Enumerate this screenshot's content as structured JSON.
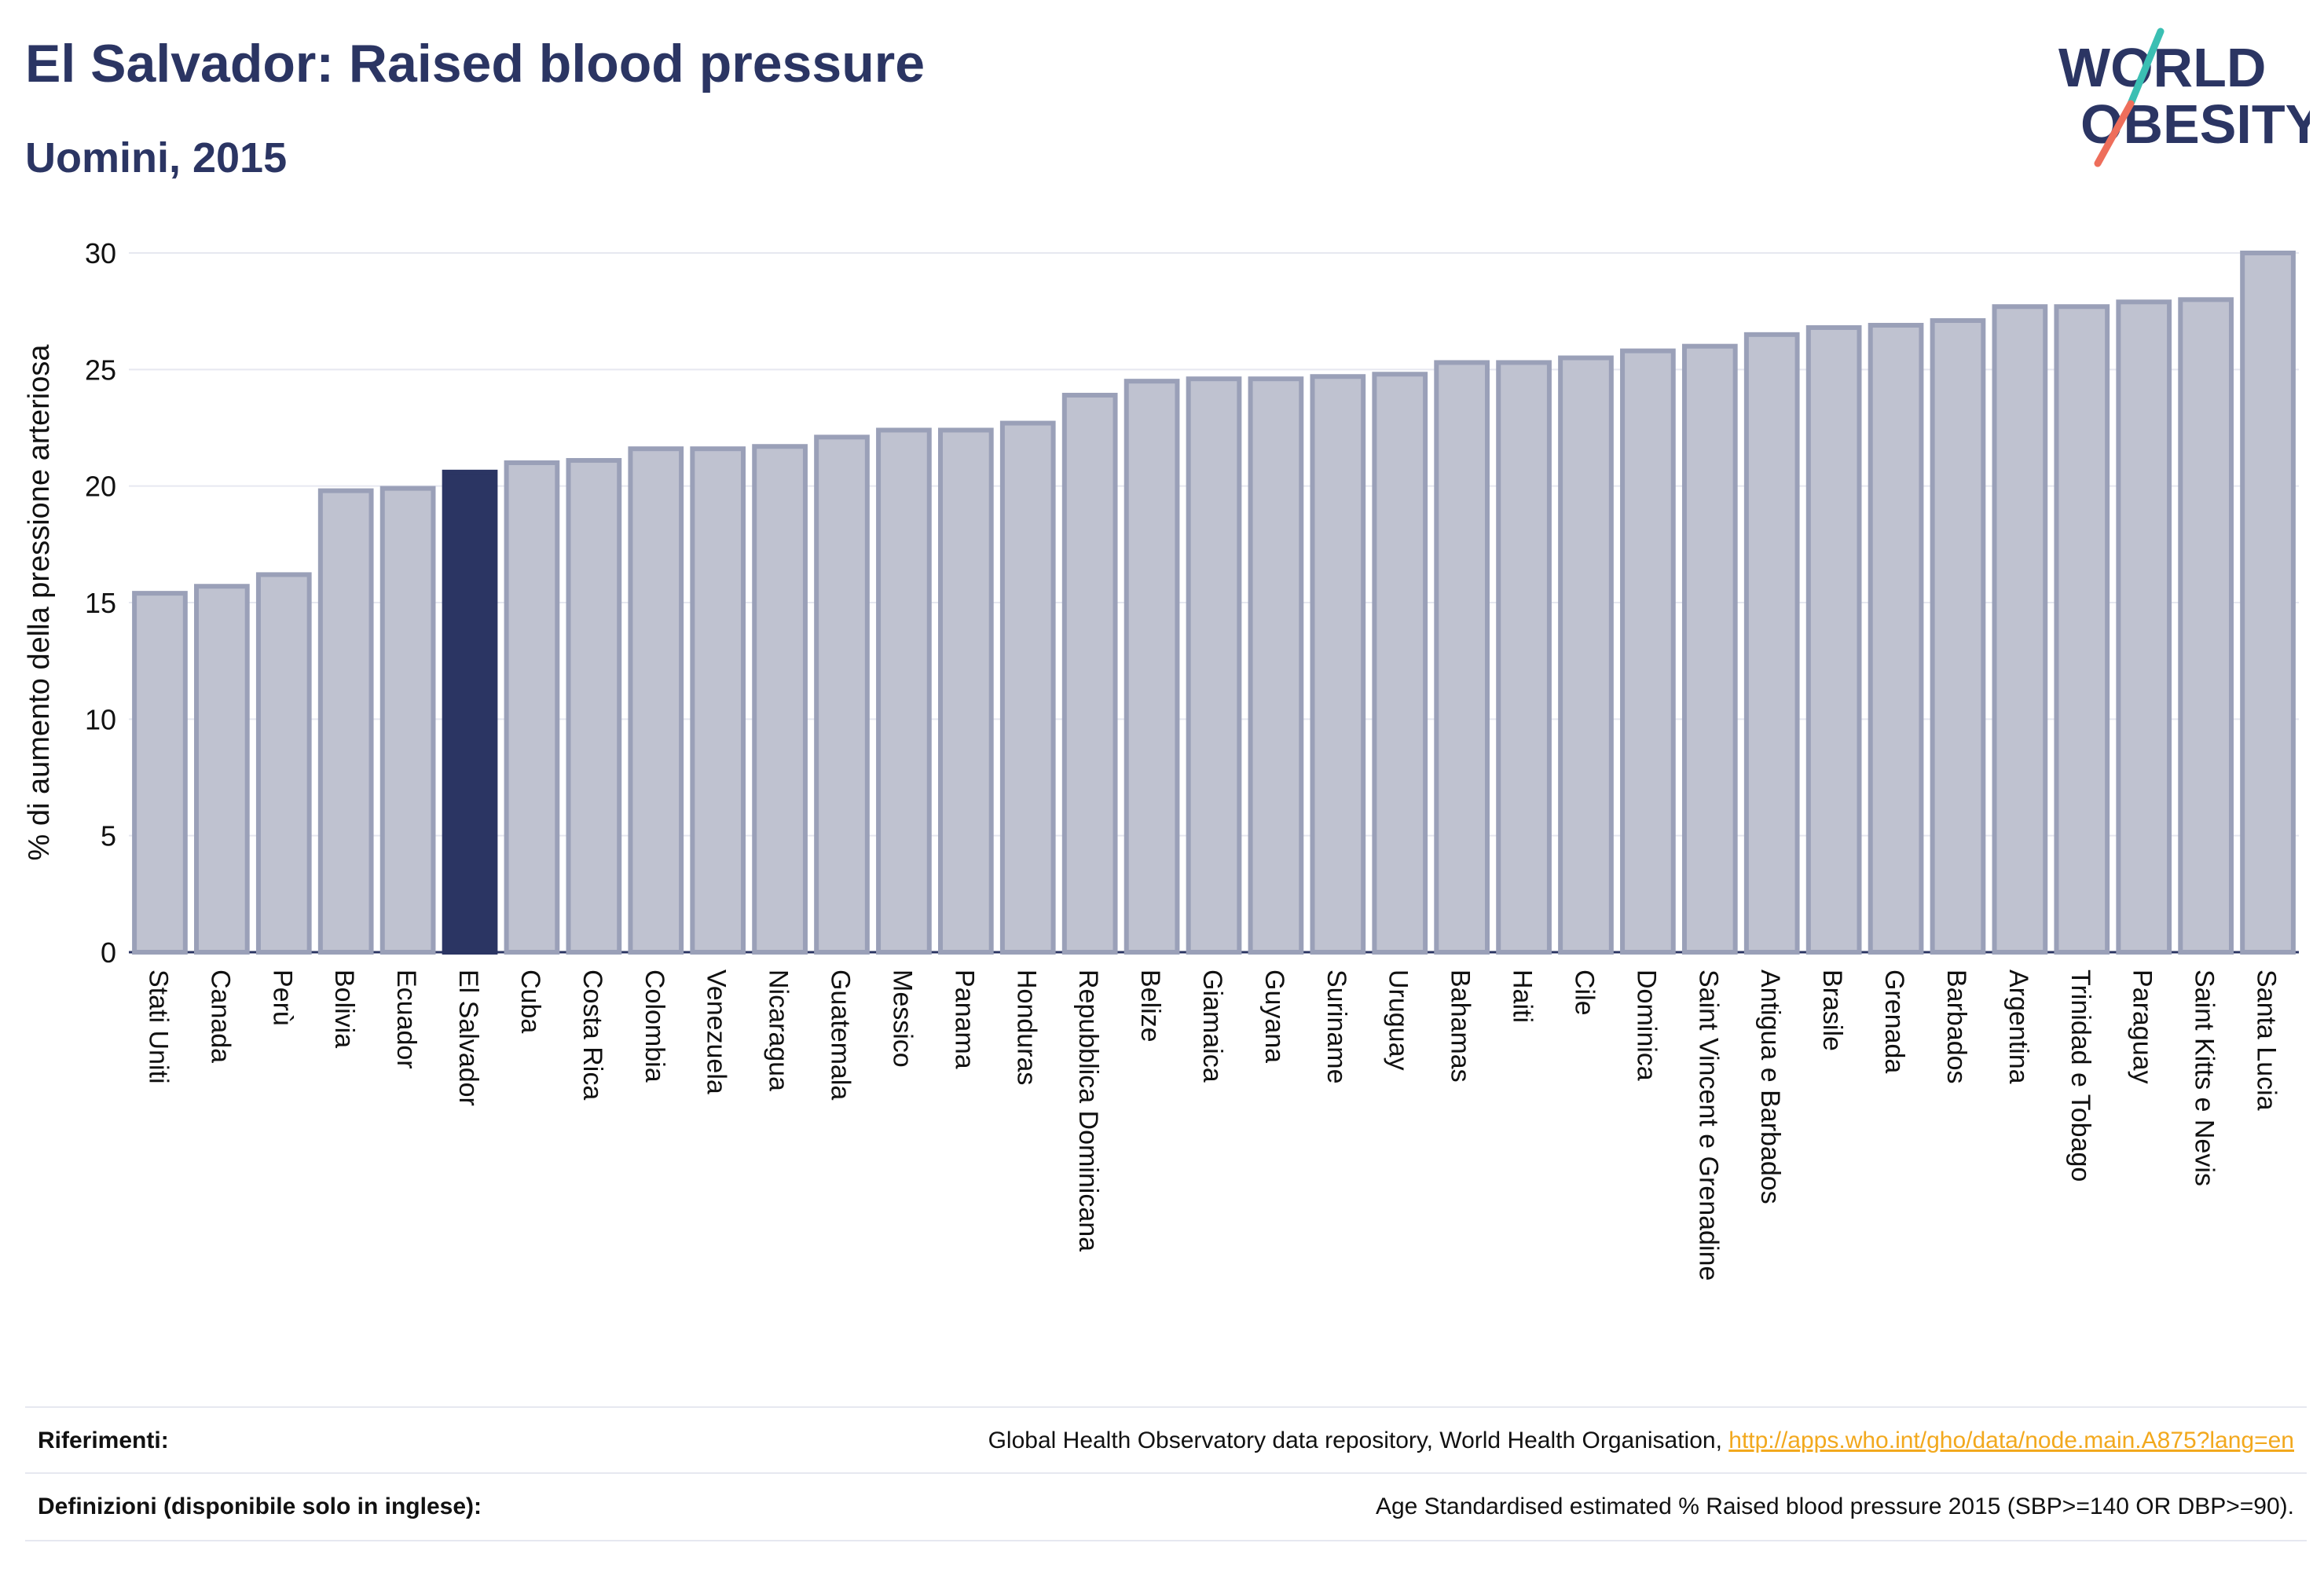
{
  "header": {
    "title": "El Salvador: Raised blood pressure",
    "subtitle": "Uomini, 2015"
  },
  "logo": {
    "line1": "WORLD",
    "line2": "OBESITY",
    "slash_color_top": "#3bbfb3",
    "slash_color_bottom": "#ee6e5b"
  },
  "footer": {
    "references_label": "Riferimenti:",
    "references_text": "Global Health Observatory data repository, World Health Organisation, ",
    "references_link": "http://apps.who.int/gho/data/node.main.A875?lang=en",
    "definitions_label": "Definizioni (disponibile solo in inglese):",
    "definitions_text": "Age Standardised estimated % Raised blood pressure 2015 (SBP>=140 OR DBP>=90)."
  },
  "colors": {
    "bar_fill": "#bfc2d0",
    "bar_stroke": "#9aa0b8",
    "highlight_fill": "#2b3563",
    "text": "#2b3563"
  },
  "chart_data": {
    "type": "bar",
    "title": "El Salvador: Raised blood pressure",
    "subtitle": "Uomini, 2015",
    "xlabel": "",
    "ylabel": "% di aumento della pressione arteriosa",
    "ylim": [
      0,
      30
    ],
    "yticks": [
      0,
      5,
      10,
      15,
      20,
      25,
      30
    ],
    "grid": true,
    "highlight": "El Salvador",
    "categories": [
      "Stati Uniti",
      "Canada",
      "Perù",
      "Bolivia",
      "Ecuador",
      "El Salvador",
      "Cuba",
      "Costa Rica",
      "Colombia",
      "Venezuela",
      "Nicaragua",
      "Guatemala",
      "Messico",
      "Panama",
      "Honduras",
      "Repubblica Dominicana",
      "Belize",
      "Giamaica",
      "Guyana",
      "Suriname",
      "Uruguay",
      "Bahamas",
      "Haiti",
      "Cile",
      "Dominica",
      "Saint Vincent e Grenadine",
      "Antigua e Barbados",
      "Brasile",
      "Grenada",
      "Barbados",
      "Argentina",
      "Trinidad e Tobago",
      "Paraguay",
      "Saint Kitts e Nevis",
      "Santa Lucia"
    ],
    "values": [
      15.4,
      15.7,
      16.2,
      19.8,
      19.9,
      20.6,
      21.0,
      21.1,
      21.6,
      21.6,
      21.7,
      22.1,
      22.4,
      22.4,
      22.7,
      23.9,
      24.5,
      24.6,
      24.6,
      24.7,
      24.8,
      25.3,
      25.3,
      25.5,
      25.8,
      26.0,
      26.5,
      26.8,
      26.9,
      27.1,
      27.7,
      27.7,
      27.9,
      28.0,
      30.0
    ]
  }
}
